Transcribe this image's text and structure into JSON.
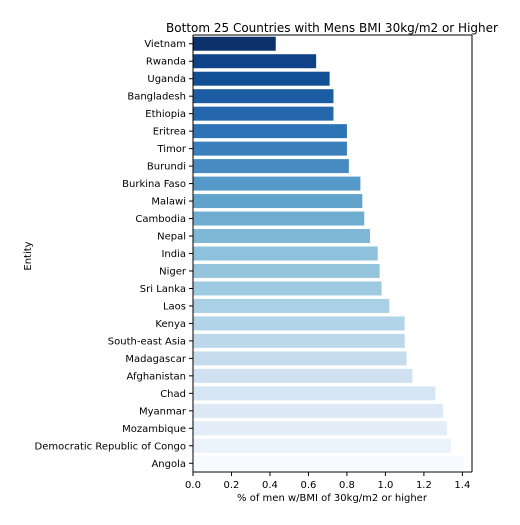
{
  "chart_data": {
    "type": "bar",
    "orientation": "horizontal",
    "title": "Bottom 25 Countries with Mens BMI 30kg/m2 or Higher",
    "xlabel": "% of men w/BMI of 30kg/m2 or higher",
    "ylabel": "Entity",
    "xlim": [
      0,
      1.45
    ],
    "xticks": [
      "0.0",
      "0.2",
      "0.4",
      "0.6",
      "0.8",
      "1.0",
      "1.2",
      "1.4"
    ],
    "grid": false,
    "categories": [
      "Vietnam",
      "Rwanda",
      "Uganda",
      "Bangladesh",
      "Ethiopia",
      "Eritrea",
      "Timor",
      "Burundi",
      "Burkina Faso",
      "Malawi",
      "Cambodia",
      "Nepal",
      "India",
      "Niger",
      "Sri Lanka",
      "Laos",
      "Kenya",
      "South-east Asia",
      "Madagascar",
      "Afghanistan",
      "Chad",
      "Myanmar",
      "Mozambique",
      "Democratic Republic of Congo",
      "Angola"
    ],
    "values": [
      0.43,
      0.64,
      0.71,
      0.73,
      0.73,
      0.8,
      0.8,
      0.81,
      0.87,
      0.88,
      0.89,
      0.92,
      0.96,
      0.97,
      0.98,
      1.02,
      1.1,
      1.1,
      1.11,
      1.14,
      1.26,
      1.3,
      1.32,
      1.34,
      1.41
    ],
    "colors": [
      "#0c316b",
      "#0f4286",
      "#134f94",
      "#1c5ca3",
      "#2567ad",
      "#2d73b6",
      "#3a7fbb",
      "#478bc2",
      "#5599c8",
      "#62a3cc",
      "#70aed1",
      "#7fb7d6",
      "#8dc1dc",
      "#95c5dd",
      "#9dcae1",
      "#a9d0e4",
      "#b2d4e8",
      "#bcd8eb",
      "#c5dced",
      "#cfe1f1",
      "#d6e6f4",
      "#dde9f6",
      "#e4eef9",
      "#eaf2fb",
      "#f7fbff"
    ]
  }
}
